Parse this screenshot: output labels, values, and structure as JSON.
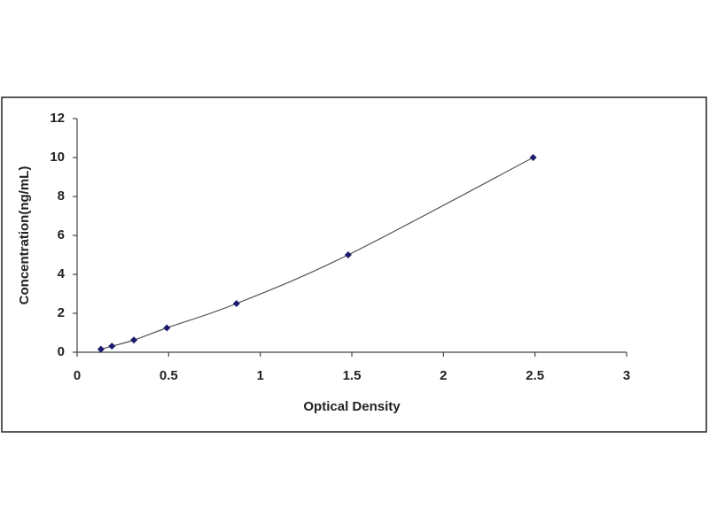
{
  "chart_data": {
    "type": "scatter",
    "x_label": "Optical Density",
    "y_label": "Concentration(ng/mL)",
    "x": [
      0.13,
      0.19,
      0.31,
      0.49,
      0.87,
      1.48,
      2.49
    ],
    "values": [
      0.156,
      0.312,
      0.625,
      1.25,
      2.5,
      5,
      10
    ],
    "color": "#1c1c6e",
    "trendline": true,
    "trendline_color": "#555555",
    "xlim": [
      0,
      3
    ],
    "xticks": [
      0,
      0.5,
      1,
      1.5,
      2,
      2.5,
      3
    ],
    "ylim": [
      0,
      12
    ],
    "yticks": [
      0,
      2,
      4,
      6,
      8,
      10,
      12
    ],
    "grid": false
  }
}
